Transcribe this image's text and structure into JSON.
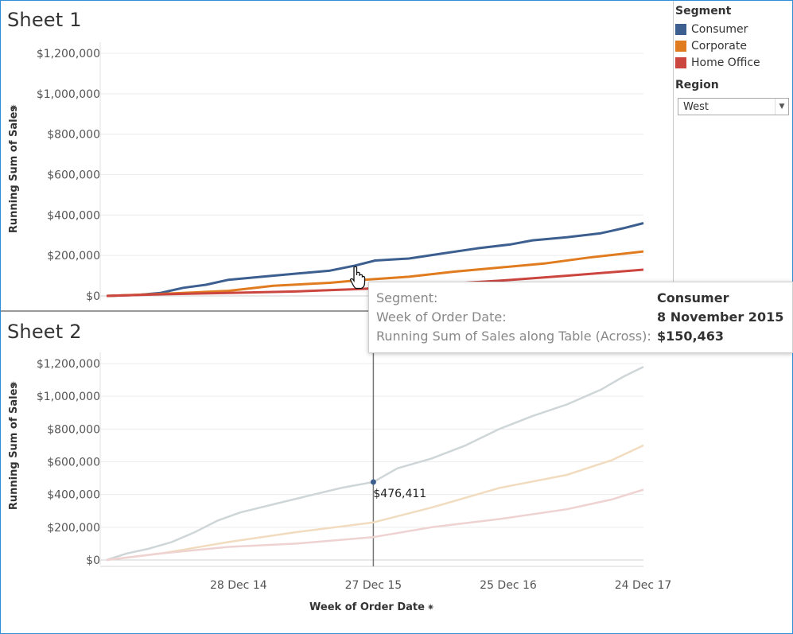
{
  "chart_data": [
    {
      "type": "line",
      "sheet_title": "Sheet 1",
      "ylabel": "Running Sum of Sales",
      "y_ticks": [
        "$0",
        "$200,000",
        "$400,000",
        "$600,000",
        "$800,000",
        "$1,000,000",
        "$1,200,000"
      ],
      "ylim": [
        0,
        1200000
      ],
      "x_range": [
        "2014-01-06",
        "2017-12-25"
      ],
      "series": [
        {
          "name": "Consumer",
          "color": "#3c5f8f",
          "x": [
            "2014-01-06",
            "2014-04-01",
            "2014-06-01",
            "2014-08-01",
            "2014-10-01",
            "2014-12-01",
            "2015-03-01",
            "2015-06-01",
            "2015-09-01",
            "2015-11-08",
            "2016-01-01",
            "2016-04-01",
            "2016-07-01",
            "2016-10-01",
            "2017-01-01",
            "2017-03-01",
            "2017-06-01",
            "2017-09-01",
            "2017-11-01",
            "2017-12-25"
          ],
          "values": [
            0,
            5000,
            15000,
            40000,
            55000,
            80000,
            95000,
            110000,
            125000,
            150463,
            175000,
            185000,
            210000,
            235000,
            255000,
            275000,
            290000,
            310000,
            335000,
            360000
          ]
        },
        {
          "name": "Corporate",
          "color": "#e07c1f",
          "x": [
            "2014-01-06",
            "2014-06-01",
            "2014-12-01",
            "2015-04-01",
            "2015-09-01",
            "2015-12-01",
            "2016-04-01",
            "2016-08-01",
            "2016-12-01",
            "2017-04-01",
            "2017-08-01",
            "2017-12-25"
          ],
          "values": [
            0,
            10000,
            25000,
            50000,
            65000,
            80000,
            95000,
            120000,
            140000,
            160000,
            190000,
            220000
          ]
        },
        {
          "name": "Home Office",
          "color": "#cc4640",
          "x": [
            "2014-01-06",
            "2014-06-01",
            "2014-12-01",
            "2015-06-01",
            "2015-12-01",
            "2016-06-01",
            "2016-12-01",
            "2017-06-01",
            "2017-12-25"
          ],
          "values": [
            0,
            8000,
            15000,
            22000,
            35000,
            55000,
            75000,
            100000,
            130000
          ]
        }
      ]
    },
    {
      "type": "line",
      "sheet_title": "Sheet 2",
      "ylabel": "Running Sum of Sales",
      "xlabel": "Week of Order Date",
      "y_ticks": [
        "$0",
        "$200,000",
        "$400,000",
        "$600,000",
        "$800,000",
        "$1,000,000",
        "$1,200,000"
      ],
      "ylim": [
        0,
        1200000
      ],
      "x_ticks": [
        "28 Dec 14",
        "27 Dec 15",
        "25 Dec 16",
        "24 Dec 17"
      ],
      "x_tick_dates": [
        "2014-12-28",
        "2015-12-27",
        "2016-12-25",
        "2017-12-24"
      ],
      "x_range": [
        "2014-01-06",
        "2017-12-25"
      ],
      "reference_line_date": "2015-12-27",
      "annotation": {
        "label": "$476,411",
        "x": "2015-12-27",
        "value": 476411
      },
      "series": [
        {
          "name": "Consumer",
          "color": "#cfd6d8",
          "x": [
            "2014-01-06",
            "2014-03-01",
            "2014-05-01",
            "2014-07-01",
            "2014-09-01",
            "2014-11-01",
            "2015-01-01",
            "2015-04-01",
            "2015-07-01",
            "2015-10-01",
            "2015-12-27",
            "2016-03-01",
            "2016-06-01",
            "2016-09-01",
            "2016-12-01",
            "2017-03-01",
            "2017-06-01",
            "2017-09-01",
            "2017-11-01",
            "2017-12-25"
          ],
          "values": [
            0,
            40000,
            70000,
            110000,
            170000,
            240000,
            290000,
            340000,
            390000,
            440000,
            476411,
            560000,
            620000,
            700000,
            800000,
            880000,
            950000,
            1040000,
            1120000,
            1180000
          ]
        },
        {
          "name": "Corporate",
          "color": "#f1dcbf",
          "x": [
            "2014-01-06",
            "2014-06-01",
            "2014-12-01",
            "2015-06-01",
            "2015-12-27",
            "2016-06-01",
            "2016-12-01",
            "2017-06-01",
            "2017-10-01",
            "2017-12-25"
          ],
          "values": [
            0,
            40000,
            110000,
            170000,
            230000,
            320000,
            440000,
            520000,
            610000,
            700000
          ]
        },
        {
          "name": "Home Office",
          "color": "#efd2d2",
          "x": [
            "2014-01-06",
            "2014-06-01",
            "2014-12-01",
            "2015-06-01",
            "2015-12-27",
            "2016-06-01",
            "2016-12-01",
            "2017-06-01",
            "2017-10-01",
            "2017-12-25"
          ],
          "values": [
            0,
            40000,
            80000,
            100000,
            140000,
            200000,
            250000,
            310000,
            370000,
            430000
          ]
        }
      ]
    }
  ],
  "legend": {
    "title": "Segment",
    "items": [
      {
        "label": "Consumer",
        "color": "#3c5f8f"
      },
      {
        "label": "Corporate",
        "color": "#e07c1f"
      },
      {
        "label": "Home Office",
        "color": "#cc4640"
      }
    ]
  },
  "filter": {
    "title": "Region",
    "value": "West"
  },
  "tooltip": {
    "rows": [
      {
        "label": "Segment:",
        "value": "Consumer"
      },
      {
        "label": "Week of Order Date:",
        "value": "8 November 2015"
      },
      {
        "label": "Running Sum of Sales along Table (Across):",
        "value": "$150,463"
      }
    ]
  }
}
